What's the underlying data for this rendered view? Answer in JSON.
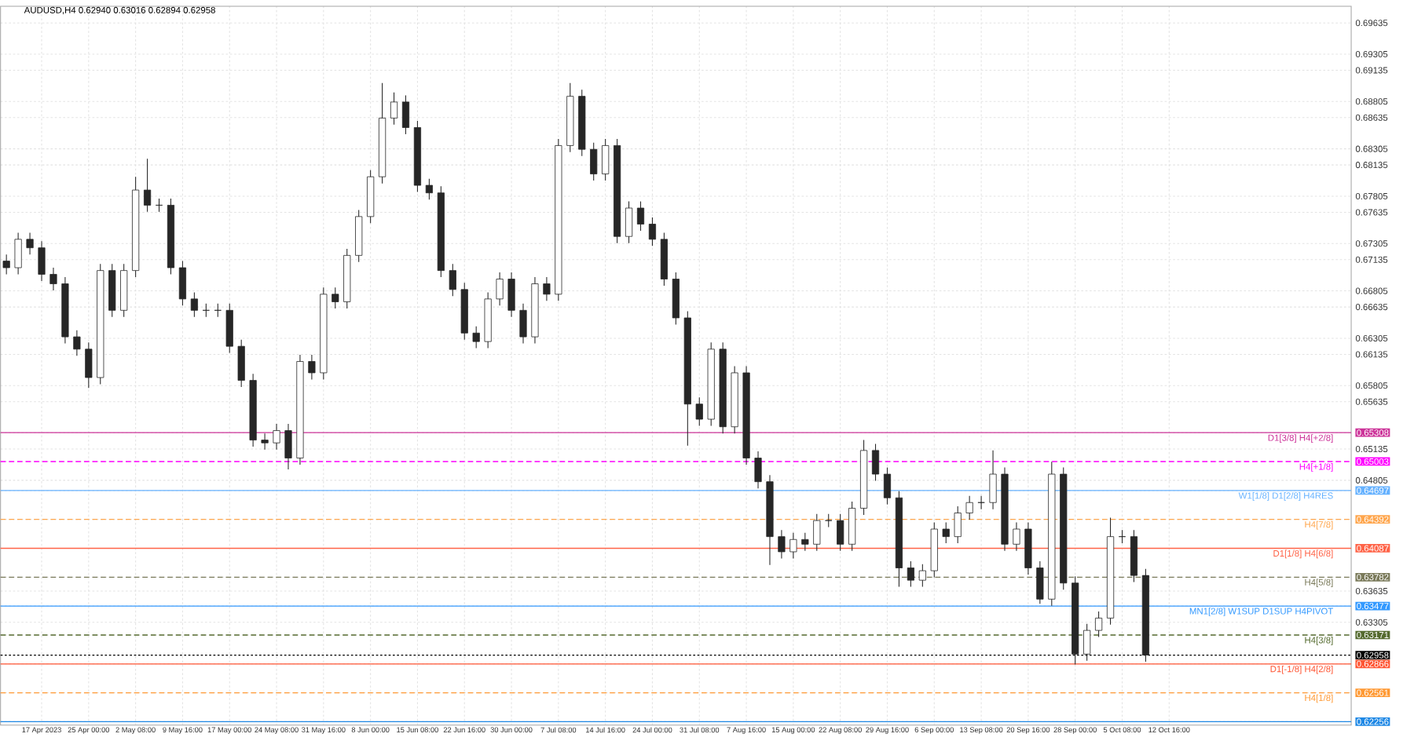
{
  "chart_data": {
    "type": "candlestick",
    "title": "AUDUSD,H4  0.62940 0.63016 0.62894 0.62958",
    "categories": [
      null,
      null,
      null,
      "17 Apr 2023",
      null,
      null,
      null,
      "25 Apr 00:00",
      null,
      null,
      null,
      "2 May 08:00",
      null,
      null,
      null,
      "9 May 16:00",
      null,
      null,
      null,
      "17 May 00:00",
      null,
      null,
      null,
      "24 May 08:00",
      null,
      null,
      null,
      "31 May 16:00",
      null,
      null,
      null,
      "8 Jun 00:00",
      null,
      null,
      null,
      "15 Jun 08:00",
      null,
      null,
      null,
      "22 Jun 16:00",
      null,
      null,
      null,
      "30 Jun 00:00",
      null,
      null,
      null,
      "7 Jul 08:00",
      null,
      null,
      null,
      "14 Jul 16:00",
      null,
      null,
      null,
      "24 Jul 00:00",
      null,
      null,
      null,
      "31 Jul 08:00",
      null,
      null,
      null,
      "7 Aug 16:00",
      null,
      null,
      null,
      "15 Aug 00:00",
      null,
      null,
      null,
      "22 Aug 08:00",
      null,
      null,
      null,
      "29 Aug 16:00",
      null,
      null,
      null,
      "6 Sep 00:00",
      null,
      null,
      null,
      "13 Sep 08:00",
      null,
      null,
      null,
      "20 Sep 16:00",
      null,
      null,
      null,
      "28 Sep 00:00",
      null,
      null,
      null,
      "5 Oct 08:00",
      null,
      null,
      null,
      "12 Oct 16:00",
      null,
      null,
      null,
      null,
      null,
      null,
      null,
      null,
      null,
      null,
      null,
      null,
      null,
      null,
      null
    ],
    "ohlc": [
      [
        0.6712,
        0.6719,
        0.6698,
        0.6705
      ],
      [
        0.6705,
        0.6742,
        0.6698,
        0.6735
      ],
      [
        0.6735,
        0.6742,
        0.6719,
        0.6726
      ],
      [
        0.6726,
        0.6733,
        0.6691,
        0.6698
      ],
      [
        0.6698,
        0.6705,
        0.6681,
        0.6688
      ],
      [
        0.6688,
        0.6695,
        0.6625,
        0.6632
      ],
      [
        0.6632,
        0.6639,
        0.6612,
        0.6619
      ],
      [
        0.6619,
        0.6626,
        0.6578,
        0.6589
      ],
      [
        0.6589,
        0.6709,
        0.6582,
        0.6702
      ],
      [
        0.6702,
        0.6709,
        0.6653,
        0.666
      ],
      [
        0.666,
        0.6709,
        0.6653,
        0.6702
      ],
      [
        0.6702,
        0.6801,
        0.6695,
        0.6787
      ],
      [
        0.6787,
        0.682,
        0.6764,
        0.6771
      ],
      [
        0.6771,
        0.6778,
        0.6764,
        0.6771
      ],
      [
        0.6771,
        0.6778,
        0.6698,
        0.6705
      ],
      [
        0.6705,
        0.6712,
        0.6665,
        0.6672
      ],
      [
        0.6672,
        0.6679,
        0.6653,
        0.666
      ],
      [
        0.666,
        0.6667,
        0.6653,
        0.666
      ],
      [
        0.666,
        0.6667,
        0.6653,
        0.666
      ],
      [
        0.666,
        0.6667,
        0.6615,
        0.6622
      ],
      [
        0.6622,
        0.6629,
        0.6579,
        0.6586
      ],
      [
        0.6586,
        0.6593,
        0.6516,
        0.6523
      ],
      [
        0.6523,
        0.653,
        0.6513,
        0.652
      ],
      [
        0.652,
        0.654,
        0.6513,
        0.6533
      ],
      [
        0.6533,
        0.654,
        0.6492,
        0.6504
      ],
      [
        0.6504,
        0.6613,
        0.6497,
        0.6606
      ],
      [
        0.6606,
        0.6613,
        0.6587,
        0.6594
      ],
      [
        0.6594,
        0.6684,
        0.6587,
        0.6677
      ],
      [
        0.6677,
        0.6684,
        0.6662,
        0.6669
      ],
      [
        0.6669,
        0.6725,
        0.6662,
        0.6718
      ],
      [
        0.6718,
        0.6766,
        0.6711,
        0.6759
      ],
      [
        0.6759,
        0.6808,
        0.6752,
        0.6801
      ],
      [
        0.6801,
        0.69,
        0.6794,
        0.6863
      ],
      [
        0.6863,
        0.689,
        0.6856,
        0.688
      ],
      [
        0.688,
        0.6887,
        0.6846,
        0.6853
      ],
      [
        0.6853,
        0.686,
        0.6785,
        0.6792
      ],
      [
        0.6792,
        0.6799,
        0.6777,
        0.6784
      ],
      [
        0.6784,
        0.6791,
        0.6695,
        0.6702
      ],
      [
        0.6702,
        0.6709,
        0.6675,
        0.6682
      ],
      [
        0.6682,
        0.6689,
        0.6629,
        0.6636
      ],
      [
        0.6636,
        0.6643,
        0.662,
        0.6627
      ],
      [
        0.6627,
        0.6679,
        0.662,
        0.6672
      ],
      [
        0.6672,
        0.67,
        0.6665,
        0.6693
      ],
      [
        0.6693,
        0.67,
        0.6653,
        0.666
      ],
      [
        0.666,
        0.6667,
        0.6625,
        0.6632
      ],
      [
        0.6632,
        0.6695,
        0.6625,
        0.6688
      ],
      [
        0.6688,
        0.6695,
        0.667,
        0.6677
      ],
      [
        0.6677,
        0.6841,
        0.667,
        0.6834
      ],
      [
        0.6834,
        0.69,
        0.6827,
        0.6886
      ],
      [
        0.6886,
        0.6893,
        0.6823,
        0.683
      ],
      [
        0.683,
        0.6837,
        0.6797,
        0.6804
      ],
      [
        0.6804,
        0.6841,
        0.6797,
        0.6834
      ],
      [
        0.6834,
        0.6841,
        0.6731,
        0.6738
      ],
      [
        0.6738,
        0.6775,
        0.6731,
        0.6768
      ],
      [
        0.6768,
        0.6775,
        0.6744,
        0.6751
      ],
      [
        0.6751,
        0.6758,
        0.6728,
        0.6735
      ],
      [
        0.6735,
        0.6742,
        0.6686,
        0.6693
      ],
      [
        0.6693,
        0.67,
        0.6645,
        0.6652
      ],
      [
        0.6652,
        0.6659,
        0.6517,
        0.6561
      ],
      [
        0.6561,
        0.6568,
        0.6538,
        0.6545
      ],
      [
        0.6545,
        0.6626,
        0.6538,
        0.6619
      ],
      [
        0.6619,
        0.6626,
        0.653,
        0.6537
      ],
      [
        0.6537,
        0.6601,
        0.653,
        0.6594
      ],
      [
        0.6594,
        0.6601,
        0.6497,
        0.6504
      ],
      [
        0.6504,
        0.6511,
        0.6472,
        0.6479
      ],
      [
        0.6479,
        0.6486,
        0.6391,
        0.6421
      ],
      [
        0.6421,
        0.6428,
        0.6398,
        0.6405
      ],
      [
        0.6405,
        0.6425,
        0.6398,
        0.6418
      ],
      [
        0.6418,
        0.6425,
        0.6406,
        0.6413
      ],
      [
        0.6413,
        0.6445,
        0.6406,
        0.6438
      ],
      [
        0.6438,
        0.6445,
        0.6431,
        0.6438
      ],
      [
        0.6438,
        0.6445,
        0.6406,
        0.6413
      ],
      [
        0.6413,
        0.6458,
        0.6406,
        0.6451
      ],
      [
        0.6451,
        0.6523,
        0.6444,
        0.6512
      ],
      [
        0.6512,
        0.6519,
        0.648,
        0.6487
      ],
      [
        0.6487,
        0.6494,
        0.6455,
        0.6462
      ],
      [
        0.6462,
        0.6469,
        0.6368,
        0.6388
      ],
      [
        0.6388,
        0.6395,
        0.6368,
        0.6375
      ],
      [
        0.6375,
        0.6392,
        0.6368,
        0.6385
      ],
      [
        0.6385,
        0.6436,
        0.6378,
        0.6429
      ],
      [
        0.6429,
        0.6436,
        0.6414,
        0.6421
      ],
      [
        0.6421,
        0.6453,
        0.6414,
        0.6446
      ],
      [
        0.6446,
        0.6464,
        0.6439,
        0.6457
      ],
      [
        0.6457,
        0.6464,
        0.645,
        0.6457
      ],
      [
        0.6457,
        0.6512,
        0.645,
        0.6487
      ],
      [
        0.6487,
        0.6494,
        0.6406,
        0.6413
      ],
      [
        0.6413,
        0.6436,
        0.6406,
        0.6429
      ],
      [
        0.6429,
        0.6436,
        0.6381,
        0.6388
      ],
      [
        0.6388,
        0.6395,
        0.635,
        0.6355
      ],
      [
        0.6355,
        0.65,
        0.6348,
        0.6487
      ],
      [
        0.6487,
        0.6494,
        0.6365,
        0.6372
      ],
      [
        0.6372,
        0.6379,
        0.6286,
        0.6297
      ],
      [
        0.6297,
        0.6329,
        0.629,
        0.6322
      ],
      [
        0.6322,
        0.6342,
        0.6315,
        0.6335
      ],
      [
        0.6335,
        0.6441,
        0.6328,
        0.6421
      ],
      [
        0.6421,
        0.6428,
        0.6414,
        0.6421
      ],
      [
        0.6421,
        0.6428,
        0.6373,
        0.638
      ],
      [
        0.638,
        0.6387,
        0.6289,
        0.6296
      ],
      null,
      null,
      null,
      null,
      null,
      null,
      null,
      null,
      null,
      null,
      null,
      null,
      null,
      null,
      null,
      null,
      null
    ],
    "ylim": [
      0.6222,
      0.6981
    ],
    "yticks": [
      0.69635,
      0.69305,
      0.69135,
      0.68805,
      0.68635,
      0.68305,
      0.68135,
      0.67805,
      0.67635,
      0.67305,
      0.67135,
      0.66805,
      0.66635,
      0.66305,
      0.66135,
      0.65805,
      0.65635,
      0.65308,
      0.65135,
      0.65003,
      0.64805,
      0.64697,
      0.64392,
      0.64087,
      0.63782,
      0.63635,
      0.63477,
      0.63305,
      0.63171,
      0.62958,
      0.62866,
      0.62561,
      0.62256
    ],
    "grid": true,
    "ref_lines": [
      {
        "axis": "y",
        "value": 0.65308,
        "label": "D1[3/8] H4[+2/8]",
        "color": "#cc3399",
        "line_style": "solid"
      },
      {
        "axis": "y",
        "value": 0.65003,
        "label": "H4[+1/8]",
        "color": "#ff00ff",
        "line_style": "dashed"
      },
      {
        "axis": "y",
        "value": 0.64697,
        "label": "W1[1/8] D1[2/8] H4RES",
        "color": "#66b2ff",
        "line_style": "solid"
      },
      {
        "axis": "y",
        "value": 0.64392,
        "label": "H4[7/8]",
        "color": "#ffa64d",
        "line_style": "dashed"
      },
      {
        "axis": "y",
        "value": 0.64087,
        "label": "D1[1/8] H4[6/8]",
        "color": "#ff6347",
        "line_style": "solid"
      },
      {
        "axis": "y",
        "value": 0.63782,
        "label": "H4[5/8]",
        "color": "#7a7a5a",
        "line_style": "dashed"
      },
      {
        "axis": "y",
        "value": 0.63477,
        "label": "MN1[2/8] W1SUP D1SUP H4PIVOT",
        "color": "#3399ff",
        "line_style": "solid"
      },
      {
        "axis": "y",
        "value": 0.63171,
        "label": "H4[3/8]",
        "color": "#556b2f",
        "line_style": "dashed"
      },
      {
        "axis": "y",
        "value": 0.62958,
        "color": "#000000",
        "line_style": "dotted"
      },
      {
        "axis": "y",
        "value": 0.62866,
        "label": "D1[-1/8] H4[2/8]",
        "color": "#ff5533",
        "line_style": "solid"
      },
      {
        "axis": "y",
        "value": 0.62561,
        "label": "H4[1/8]",
        "color": "#ff9933",
        "line_style": "dashed"
      },
      {
        "axis": "y",
        "value": 0.62256,
        "color": "#1e88e5",
        "line_style": "solid"
      }
    ]
  }
}
